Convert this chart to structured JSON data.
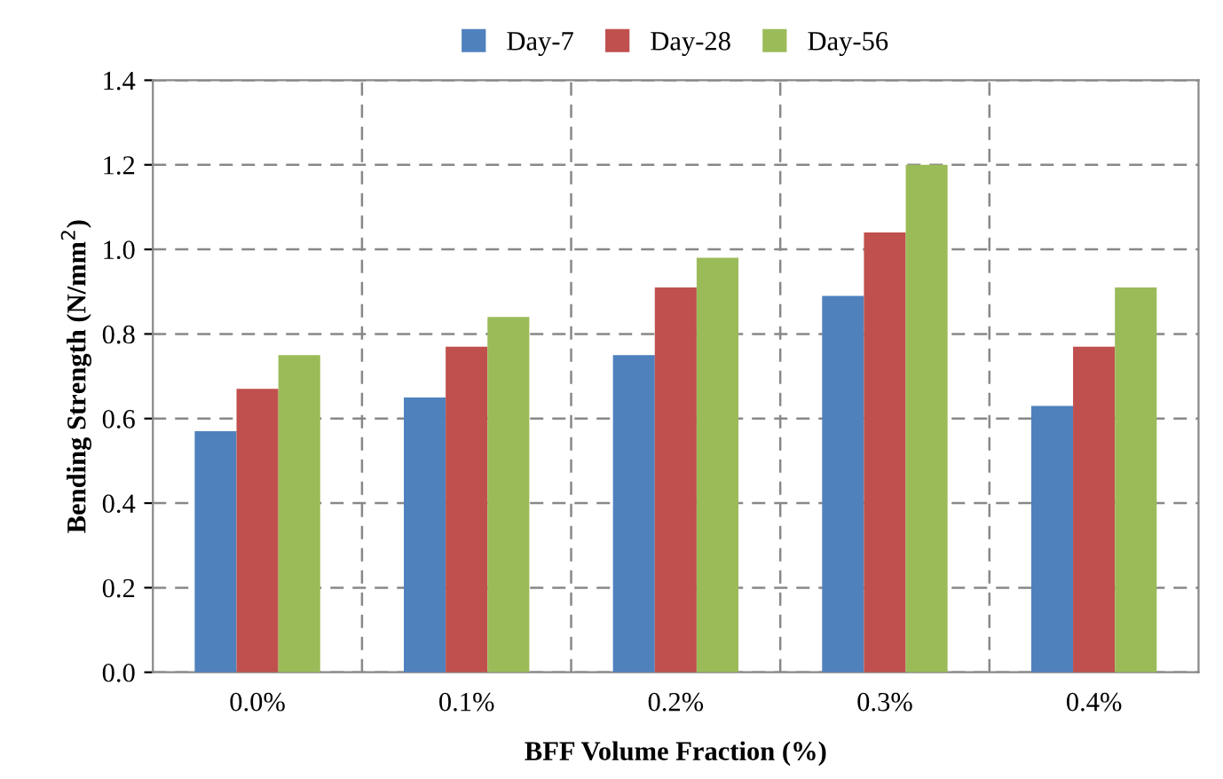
{
  "chart_data": {
    "type": "bar",
    "xlabel": "BFF Volume Fraction (%)",
    "ylabel": "Bending Strength (N/mm$^{2}$)",
    "categories": [
      "0.0%",
      "0.1%",
      "0.2%",
      "0.3%",
      "0.4%"
    ],
    "series": [
      {
        "name": "Day-7",
        "color": "#4f81bd",
        "values": [
          0.57,
          0.65,
          0.75,
          0.89,
          0.63
        ]
      },
      {
        "name": "Day-28",
        "color": "#c0504d",
        "values": [
          0.67,
          0.77,
          0.91,
          1.04,
          0.77
        ]
      },
      {
        "name": "Day-56",
        "color": "#9bbb59",
        "values": [
          0.75,
          0.84,
          0.98,
          1.2,
          0.91
        ]
      }
    ],
    "ylim": [
      0,
      1.4
    ],
    "yticks": [
      {
        "value": 0,
        "label": "0.0"
      },
      {
        "value": 0.2,
        "label": "0.2"
      },
      {
        "value": 0.4,
        "label": "0.4"
      },
      {
        "value": 0.6,
        "label": "0.6"
      },
      {
        "value": 0.8,
        "label": "0.8"
      },
      {
        "value": 1,
        "label": "1.0"
      },
      {
        "value": 1.2,
        "label": "1.2"
      },
      {
        "value": 1.4,
        "label": "1.4"
      }
    ],
    "grid": true,
    "legend": "top"
  }
}
